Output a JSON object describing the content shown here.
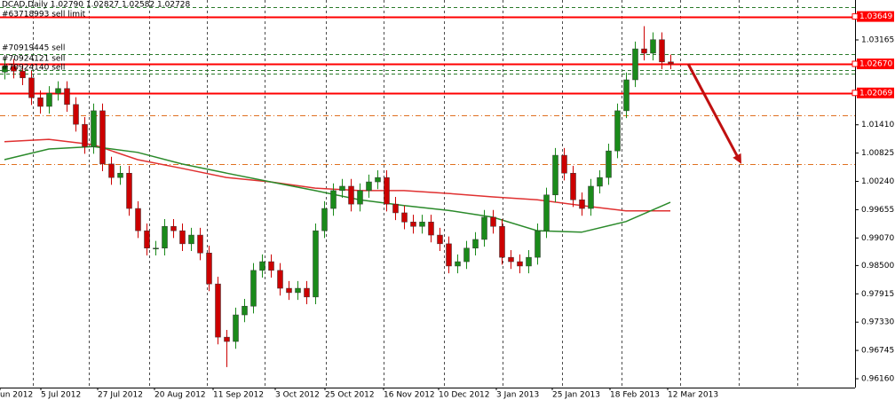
{
  "chart_data": {
    "type": "candlestick",
    "title": "DCAD,Daily  1.02790 1.02827 1.02582 1.02728",
    "annotations": [
      "#63718993 sell limit",
      "#70919445 sell",
      "#70924121 sell",
      "#70924140 sell"
    ],
    "up_color": "#1a8a1a",
    "down_color": "#cc0000",
    "open": [
      1.025,
      1.0262,
      1.0252,
      1.0238,
      1.0197,
      1.0179,
      1.0206,
      1.0216,
      1.0183,
      1.0142,
      1.0096,
      1.017,
      1.006,
      1.0032,
      1.0041,
      0.9968,
      0.9922,
      0.9886,
      0.9886,
      0.9931,
      0.9922,
      0.9895,
      0.9913,
      0.9876,
      0.9812,
      0.9702,
      0.9693,
      0.9748,
      0.9766,
      0.984,
      0.9858,
      0.984,
      0.9803,
      0.9794,
      0.9803,
      0.9785,
      0.9922,
      0.9968,
      1.0005,
      1.0014,
      0.9977,
      1.0005,
      1.0023,
      1.0032,
      0.9977,
      0.9959,
      0.994,
      0.9931,
      0.994,
      0.9913,
      0.9895,
      0.9849,
      0.9858,
      0.9886,
      0.9904,
      0.995,
      0.9931,
      0.9867,
      0.9858,
      0.9849,
      0.9867,
      0.9922,
      0.9996,
      1.0078,
      1.0041,
      0.9986,
      0.9968,
      1.0014,
      1.0032,
      1.0087,
      1.017,
      1.0234,
      1.0298,
      1.0289,
      1.0317,
      1.0271
    ],
    "high": [
      1.0277,
      1.0277,
      1.0267,
      1.0253,
      1.0212,
      1.0221,
      1.0231,
      1.0231,
      1.0198,
      1.0157,
      1.0185,
      1.0185,
      1.0075,
      1.0056,
      1.0056,
      0.9983,
      0.9937,
      0.9901,
      0.9946,
      0.9946,
      0.9937,
      0.9928,
      0.9928,
      0.9891,
      0.9827,
      0.9717,
      0.9763,
      0.9781,
      0.9855,
      0.9873,
      0.9873,
      0.9855,
      0.9818,
      0.9818,
      0.9818,
      0.9937,
      0.9983,
      1.002,
      1.0029,
      1.0029,
      1.002,
      1.0038,
      1.0047,
      1.0047,
      0.9992,
      0.9974,
      0.9955,
      0.9955,
      0.9955,
      0.9928,
      0.991,
      0.9873,
      0.9901,
      0.9919,
      0.9965,
      0.9965,
      0.9946,
      0.9882,
      0.9873,
      0.9882,
      0.9937,
      1.0011,
      1.0093,
      1.0093,
      1.0056,
      1.0001,
      1.0029,
      1.0047,
      1.0102,
      1.0185,
      1.0249,
      1.0313,
      1.0345,
      1.0332,
      1.0332,
      1.0286
    ],
    "low": [
      1.0235,
      1.0237,
      1.0223,
      1.0182,
      1.0164,
      1.0164,
      1.0191,
      1.0168,
      1.0127,
      1.0081,
      1.0081,
      1.0045,
      1.0017,
      1.0017,
      0.9953,
      0.9907,
      0.9871,
      0.9871,
      0.9871,
      0.9907,
      0.988,
      0.988,
      0.9861,
      0.9797,
      0.9687,
      0.964,
      0.9678,
      0.9733,
      0.9751,
      0.9825,
      0.9825,
      0.9788,
      0.9779,
      0.9779,
      0.977,
      0.977,
      0.9907,
      0.9953,
      0.999,
      0.9962,
      0.9962,
      0.999,
      1.0008,
      0.9962,
      0.9944,
      0.9925,
      0.9916,
      0.9916,
      0.9898,
      0.988,
      0.9834,
      0.9834,
      0.9843,
      0.9871,
      0.9889,
      0.9916,
      0.9852,
      0.9843,
      0.9834,
      0.9834,
      0.9852,
      0.9907,
      0.9981,
      1.0026,
      0.9971,
      0.9953,
      0.9953,
      0.9999,
      1.0017,
      1.0072,
      1.0155,
      1.0219,
      1.0274,
      1.0274,
      1.0256,
      1.0256
    ],
    "close": [
      1.0262,
      1.0252,
      1.0238,
      1.0197,
      1.0179,
      1.0206,
      1.0216,
      1.0183,
      1.0142,
      1.0096,
      1.017,
      1.006,
      1.0032,
      1.0041,
      0.9968,
      0.9922,
      0.9886,
      0.9886,
      0.9931,
      0.9922,
      0.9895,
      0.9913,
      0.9876,
      0.9812,
      0.9702,
      0.9693,
      0.9748,
      0.9766,
      0.984,
      0.9858,
      0.984,
      0.9803,
      0.9794,
      0.9803,
      0.9785,
      0.9922,
      0.9968,
      1.0005,
      1.0014,
      0.9977,
      1.0005,
      1.0023,
      1.0032,
      0.9977,
      0.9959,
      0.994,
      0.9931,
      0.994,
      0.9913,
      0.9895,
      0.9849,
      0.9858,
      0.9886,
      0.9904,
      0.995,
      0.9931,
      0.9867,
      0.9858,
      0.9849,
      0.9867,
      0.9922,
      0.9996,
      1.0078,
      1.0041,
      0.9986,
      0.9968,
      1.0014,
      1.0032,
      1.0087,
      1.017,
      1.0234,
      1.0298,
      1.0289,
      1.0317,
      1.0271,
      1.0267
    ],
    "series": [
      {
        "x": [
          0,
          5,
          10,
          15,
          20,
          25,
          30,
          35,
          40,
          45,
          50,
          55,
          60,
          65,
          70,
          75
        ],
        "color": "#e03030",
        "values": [
          1.0106,
          1.0111,
          1.01,
          1.0069,
          1.0051,
          1.0032,
          1.0023,
          1.001,
          1.0005,
          1.0005,
          0.9999,
          0.9992,
          0.9986,
          0.9974,
          0.9963,
          0.9963
        ]
      },
      {
        "x": [
          0,
          5,
          10,
          15,
          20,
          25,
          30,
          35,
          40,
          45,
          50,
          55,
          60,
          65,
          70,
          75
        ],
        "color": "#2a8a2a",
        "values": [
          1.0069,
          1.0091,
          1.0096,
          1.0084,
          1.006,
          1.0041,
          1.0023,
          1.0005,
          0.9986,
          0.9974,
          0.9964,
          0.995,
          0.9922,
          0.9919,
          0.9941,
          0.9981
        ]
      }
    ],
    "levels": [
      {
        "value": 1.03649,
        "label": "1.03649",
        "color": "#ff0000",
        "style": "solid"
      },
      {
        "value": 1.0267,
        "label": "1.02670",
        "color": "#ff0000",
        "style": "solid"
      },
      {
        "value": 1.02069,
        "label": "1.02069",
        "color": "#ff0000",
        "style": "solid"
      },
      {
        "value": 1.0384,
        "color": "#2a7a2a",
        "style": "dash"
      },
      {
        "value": 1.0287,
        "color": "#2a7a2a",
        "style": "dash"
      },
      {
        "value": 1.0254,
        "color": "#2a7a2a",
        "style": "dash"
      },
      {
        "value": 1.0247,
        "color": "#2a7a2a",
        "style": "dash"
      },
      {
        "value": 1.0161,
        "color": "#e07020",
        "style": "dashdot"
      },
      {
        "value": 1.006,
        "color": "#e07020",
        "style": "dashdot"
      }
    ],
    "arrow": {
      "from": [
        77,
        1.0267
      ],
      "to": [
        83,
        1.006
      ],
      "color": "#c01010"
    },
    "xlim": [
      -0.5,
      95.8
    ],
    "ylim": [
      0.95977,
      1.0399
    ],
    "xticks": [
      {
        "value": -0.5,
        "label": "un 2012"
      },
      {
        "value": 4.1,
        "label": "5 Jul 2012"
      },
      {
        "value": 10.5,
        "label": "27 Jul 2012"
      },
      {
        "value": 16.9,
        "label": "20 Aug 2012"
      },
      {
        "value": 23.5,
        "label": "11 Sep 2012"
      },
      {
        "value": 30.5,
        "label": "3 Oct 2012"
      },
      {
        "value": 36.1,
        "label": "25 Oct 2012"
      },
      {
        "value": 42.7,
        "label": "16 Nov 2012"
      },
      {
        "value": 48.9,
        "label": "10 Dec 2012"
      },
      {
        "value": 55.4,
        "label": "3 Jan 2013"
      },
      {
        "value": 61.7,
        "label": "25 Jan 2013"
      },
      {
        "value": 68.2,
        "label": "18 Feb 2013"
      },
      {
        "value": 74.7,
        "label": "12 Mar 2013"
      }
    ],
    "xgrid": [
      3.2,
      9.5,
      16.3,
      22.8,
      29.3,
      36.2,
      42.7,
      49.5,
      56.1,
      62.8,
      69.5,
      76.1,
      82.7,
      89.3
    ],
    "yticks": [
      {
        "value": 1.03165,
        "label": "1.03165"
      },
      {
        "value": 1.0141,
        "label": "1.01410"
      },
      {
        "value": 1.00825,
        "label": "1.00825"
      },
      {
        "value": 1.0024,
        "label": "1.00240"
      },
      {
        "value": 0.99655,
        "label": "0.99655"
      },
      {
        "value": 0.9907,
        "label": "0.99070"
      },
      {
        "value": 0.985,
        "label": "0.98500"
      },
      {
        "value": 0.97915,
        "label": "0.97915"
      },
      {
        "value": 0.9733,
        "label": "0.97330"
      },
      {
        "value": 0.96745,
        "label": "0.96745"
      },
      {
        "value": 0.9616,
        "label": "0.96160"
      }
    ]
  }
}
